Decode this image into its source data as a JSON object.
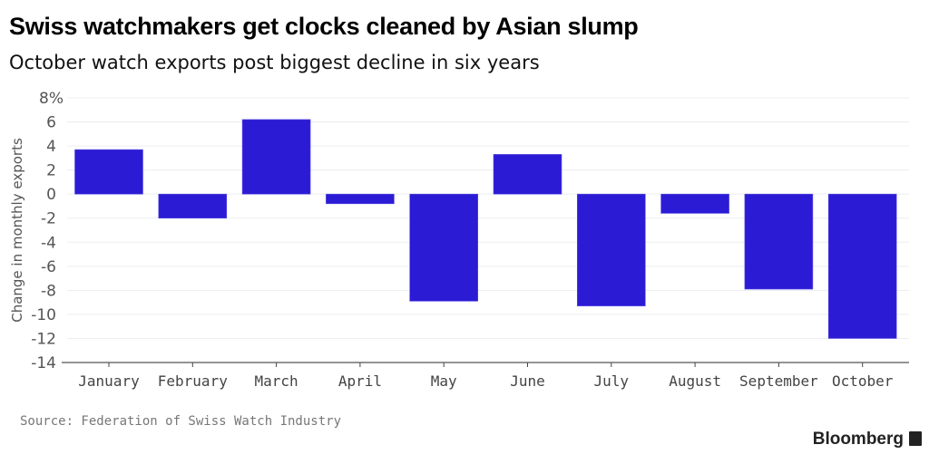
{
  "chart_data": {
    "type": "bar",
    "title": "Swiss watchmakers get clocks cleaned by Asian slump",
    "subtitle": "October watch exports post biggest decline in six years",
    "xlabel": "",
    "ylabel": "Change in monthly exports",
    "categories": [
      "January",
      "February",
      "March",
      "April",
      "May",
      "June",
      "July",
      "August",
      "September",
      "October"
    ],
    "values": [
      3.7,
      -2.0,
      6.2,
      -0.8,
      -8.9,
      3.3,
      -9.3,
      -1.6,
      -7.9,
      -12.0
    ],
    "ylim": [
      -14,
      8
    ],
    "yticks": [
      "8%",
      "6",
      "4",
      "2",
      "0",
      "-2",
      "-4",
      "-6",
      "-8",
      "-10",
      "-12",
      "-14"
    ],
    "grid": true,
    "bar_color": "#2b1bd4",
    "source": "Source: Federation of Swiss Watch Industry"
  },
  "brand": "Bloomberg"
}
